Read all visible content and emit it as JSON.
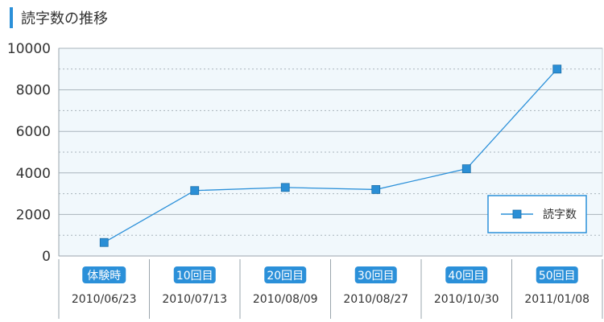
{
  "chart_data": {
    "type": "line",
    "title": "読字数の推移",
    "categories": [
      "体験時",
      "10回目",
      "20回目",
      "30回目",
      "40回目",
      "50回目"
    ],
    "dates": [
      "2010/06/23",
      "2010/07/13",
      "2010/08/09",
      "2010/08/27",
      "2010/10/30",
      "2011/01/08"
    ],
    "series": [
      {
        "name": "読字数",
        "values": [
          650,
          3150,
          3300,
          3200,
          4200,
          9000
        ]
      }
    ],
    "ylim": [
      0,
      10000
    ],
    "yticks": [
      0,
      2000,
      4000,
      6000,
      8000,
      10000
    ],
    "grid": true,
    "legend": "right",
    "colors": {
      "line": "#2b90d9",
      "marker": "#2b8fd6",
      "badge": "#2b90d9",
      "plot_bg": "#f1f8fc"
    }
  }
}
